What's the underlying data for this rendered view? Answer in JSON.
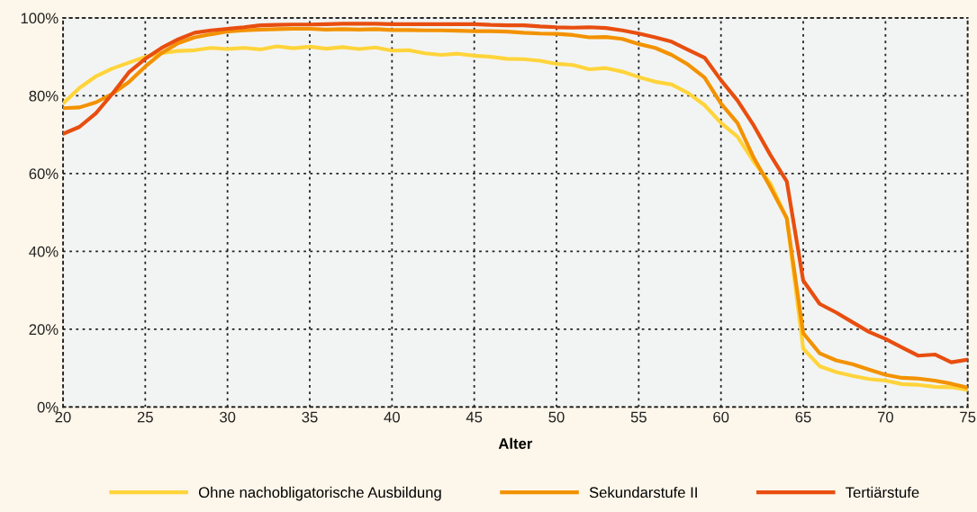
{
  "chart_data": {
    "type": "line",
    "xlabel": "Alter",
    "x": [
      20,
      21,
      22,
      23,
      24,
      25,
      26,
      27,
      28,
      29,
      30,
      31,
      32,
      33,
      34,
      35,
      36,
      37,
      38,
      39,
      40,
      41,
      42,
      43,
      44,
      45,
      46,
      47,
      48,
      49,
      50,
      51,
      52,
      53,
      54,
      55,
      56,
      57,
      58,
      59,
      60,
      61,
      62,
      63,
      64,
      65,
      66,
      67,
      68,
      69,
      70,
      71,
      72,
      73,
      74,
      75
    ],
    "series": [
      {
        "name": "Ohne nachobligatorische Ausbildung",
        "color": "#ffd43b",
        "values": [
          78,
          82,
          85,
          87,
          88.5,
          90,
          91,
          91.5,
          91.7,
          92.3,
          92,
          92.3,
          91.9,
          92.7,
          92.2,
          92.6,
          92.1,
          92.5,
          92,
          92.4,
          91.6,
          91.7,
          90.9,
          90.5,
          90.8,
          90.3,
          90,
          89.5,
          89.4,
          89,
          88.2,
          87.9,
          86.8,
          87.1,
          86.2,
          84.8,
          83.6,
          82.9,
          80.7,
          77.6,
          73,
          69.5,
          63,
          57.5,
          48.5,
          15,
          10.5,
          9,
          8,
          7.2,
          6.8,
          5.9,
          5.7,
          5.2,
          5.1,
          4.4
        ]
      },
      {
        "name": "Sekundarstufe II",
        "color": "#f39200",
        "values": [
          76.8,
          77,
          78.3,
          80.5,
          83.5,
          87.5,
          91,
          93.5,
          95,
          95.8,
          96.5,
          96.8,
          97,
          97.1,
          97.2,
          97.2,
          97,
          97.1,
          97,
          97.1,
          96.9,
          96.9,
          96.8,
          96.8,
          96.7,
          96.6,
          96.6,
          96.5,
          96.2,
          96,
          95.9,
          95.6,
          95,
          95.1,
          94.6,
          93.3,
          92.3,
          90.5,
          88,
          84.7,
          78,
          73,
          64,
          56.5,
          48.5,
          19,
          13.8,
          12,
          11,
          9.6,
          8.3,
          7.5,
          7.3,
          6.8,
          6,
          5
        ]
      },
      {
        "name": "Tertiärstufe",
        "color": "#e84e0f",
        "values": [
          70.2,
          72,
          75.5,
          80.5,
          86,
          89.5,
          92.3,
          94.5,
          96.2,
          96.8,
          97.2,
          97.6,
          98.1,
          98.2,
          98.3,
          98.3,
          98.4,
          98.5,
          98.5,
          98.5,
          98.4,
          98.4,
          98.4,
          98.4,
          98.4,
          98.4,
          98.2,
          98.1,
          98.1,
          97.8,
          97.6,
          97.5,
          97.6,
          97.4,
          96.8,
          96,
          95,
          93.9,
          91.8,
          89.8,
          84,
          78.8,
          72.3,
          64.8,
          58,
          32.5,
          26.5,
          24.3,
          21.8,
          19.3,
          17.5,
          15.3,
          13.2,
          13.5,
          11.5,
          12.2
        ]
      }
    ],
    "xlim": [
      20,
      75
    ],
    "xticks": [
      20,
      25,
      30,
      35,
      40,
      45,
      50,
      55,
      60,
      65,
      70,
      75
    ],
    "ylim": [
      0,
      100
    ],
    "yticks": [
      {
        "value": 0,
        "label": "0%"
      },
      {
        "value": 20,
        "label": "20%"
      },
      {
        "value": 40,
        "label": "40%"
      },
      {
        "value": 60,
        "label": "60%"
      },
      {
        "value": 80,
        "label": "80%"
      },
      {
        "value": 100,
        "label": "100%"
      }
    ],
    "grid": true,
    "legend": "bottom",
    "marker": "none",
    "line_style": "solid"
  }
}
